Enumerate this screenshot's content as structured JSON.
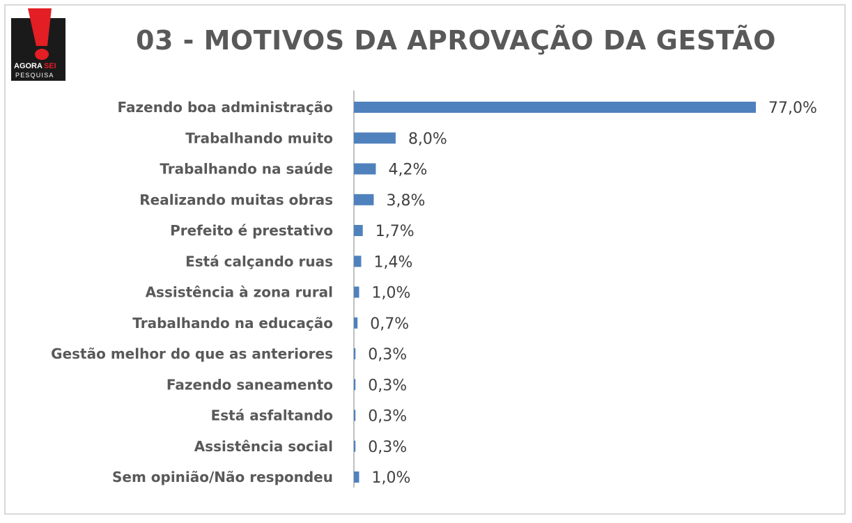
{
  "logo": {
    "brand_main": "AGORA",
    "brand_accent": "SEI",
    "brand_sub": "PESQUISA"
  },
  "colors": {
    "bar": "#4f81bd",
    "axis": "#bfbfbf",
    "title": "#595959",
    "logo_red": "#e31e24",
    "logo_black": "#1a1a1a"
  },
  "chart_data": {
    "type": "bar",
    "orientation": "horizontal",
    "title": "03 - MOTIVOS DA APROVAÇÃO DA GESTÃO",
    "categories": [
      "Fazendo boa administração",
      "Trabalhando muito",
      "Trabalhando na saúde",
      "Realizando muitas obras",
      "Prefeito é prestativo",
      "Está calçando ruas",
      "Assistência à zona rural",
      "Trabalhando na educação",
      "Gestão melhor do que as anteriores",
      "Fazendo saneamento",
      "Está asfaltando",
      "Assistência social",
      "Sem opinião/Não respondeu"
    ],
    "values": [
      77.0,
      8.0,
      4.2,
      3.8,
      1.7,
      1.4,
      1.0,
      0.7,
      0.3,
      0.3,
      0.3,
      0.3,
      1.0
    ],
    "value_labels": [
      "77,0%",
      "8,0%",
      "4,2%",
      "3,8%",
      "1,7%",
      "1,4%",
      "1,0%",
      "0,7%",
      "0,3%",
      "0,3%",
      "0,3%",
      "0,3%",
      "1,0%"
    ],
    "xlim": [
      0,
      77
    ],
    "grid": false,
    "legend": "none"
  }
}
